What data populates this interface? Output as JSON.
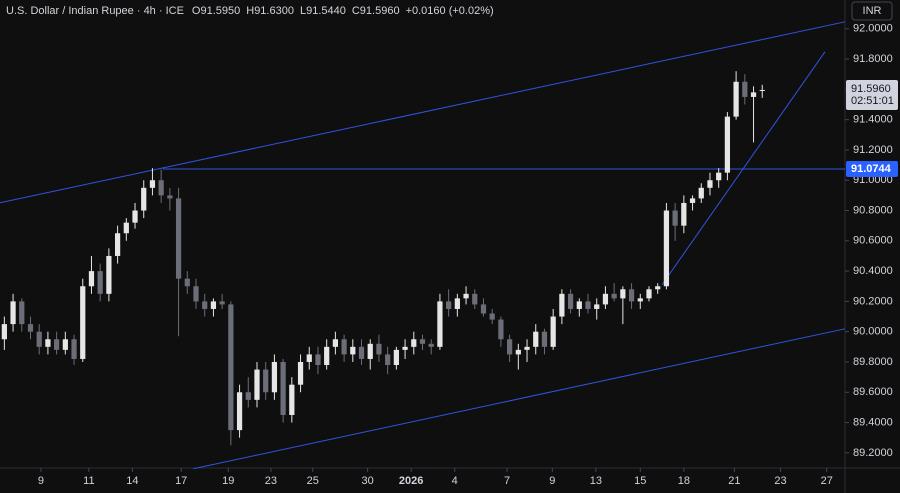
{
  "chart_data": {
    "type": "candlestick",
    "header": {
      "symbol": "U.S. Dollar / Indian Rupee · 4h · ICE",
      "ohlc": [
        "O91.5950",
        "H91.6300",
        "L91.5440",
        "C91.5960"
      ],
      "change": "+0.0160 (+0.02%)"
    },
    "currency": "INR",
    "up_color": "#e6e6e6",
    "down_color": "#6b6e78",
    "line_color": "#2f55e0",
    "x": [
      0,
      1,
      2,
      3,
      4,
      5,
      6,
      7,
      8,
      9,
      10,
      11,
      12,
      13,
      14,
      15,
      16,
      17,
      18,
      19,
      20,
      21,
      22,
      23,
      24,
      25,
      26,
      27,
      28,
      29,
      30,
      31,
      32,
      33,
      34,
      35,
      36,
      37,
      38,
      39,
      40,
      41,
      42,
      43,
      44,
      45,
      46,
      47,
      48,
      49,
      50,
      51,
      52,
      53,
      54,
      55,
      56,
      57,
      58,
      59,
      60,
      61,
      62,
      63,
      64,
      65,
      66,
      67,
      68,
      69,
      70,
      71,
      72,
      73,
      74,
      75,
      76,
      77,
      78,
      79,
      80,
      81,
      82,
      83,
      84,
      85,
      86,
      87
    ],
    "open": [
      89.95,
      90.05,
      90.2,
      90.05,
      90.0,
      89.9,
      89.95,
      89.88,
      89.95,
      89.82,
      90.3,
      90.4,
      90.25,
      90.5,
      90.65,
      90.72,
      90.8,
      90.95,
      91.0,
      90.9,
      90.88,
      90.35,
      90.3,
      90.2,
      90.15,
      90.2,
      90.18,
      89.35,
      89.6,
      89.55,
      89.75,
      89.6,
      89.8,
      89.45,
      89.65,
      89.8,
      89.85,
      89.78,
      89.9,
      89.95,
      89.85,
      89.9,
      89.82,
      89.92,
      89.85,
      89.78,
      89.88,
      89.9,
      89.95,
      89.92,
      89.9,
      90.2,
      90.15,
      90.22,
      90.25,
      90.18,
      90.12,
      90.08,
      89.95,
      89.85,
      89.88,
      89.9,
      90.0,
      89.9,
      90.1,
      90.25,
      90.15,
      90.2,
      90.15,
      90.18,
      90.25,
      90.22,
      90.28,
      90.2,
      90.22,
      90.28,
      90.3,
      90.8,
      90.7,
      90.85,
      90.88,
      90.95,
      91.0,
      91.05,
      91.42,
      91.65,
      91.55,
      91.595
    ],
    "high": [
      90.1,
      90.25,
      90.22,
      90.1,
      90.05,
      90.0,
      90.0,
      90.0,
      89.98,
      90.35,
      90.5,
      90.45,
      90.55,
      90.7,
      90.75,
      90.85,
      91.0,
      91.08,
      91.07,
      90.95,
      90.95,
      90.4,
      90.35,
      90.25,
      90.22,
      90.25,
      90.2,
      89.65,
      89.7,
      89.8,
      89.8,
      89.85,
      89.82,
      89.7,
      89.85,
      89.9,
      89.9,
      89.95,
      90.0,
      89.98,
      89.95,
      89.95,
      89.95,
      89.98,
      89.9,
      89.9,
      89.95,
      90.0,
      89.98,
      89.95,
      90.25,
      90.28,
      90.25,
      90.3,
      90.28,
      90.22,
      90.15,
      90.1,
      89.98,
      89.92,
      89.95,
      90.05,
      90.02,
      90.15,
      90.28,
      90.28,
      90.22,
      90.25,
      90.22,
      90.3,
      90.32,
      90.3,
      90.32,
      90.25,
      90.3,
      90.32,
      90.85,
      90.85,
      90.9,
      90.9,
      90.98,
      91.05,
      91.08,
      91.45,
      91.72,
      91.7,
      91.62,
      91.63
    ],
    "low": [
      89.88,
      90.0,
      90.0,
      89.95,
      89.85,
      89.85,
      89.85,
      89.85,
      89.78,
      89.8,
      90.25,
      90.2,
      90.2,
      90.45,
      90.6,
      90.68,
      90.75,
      90.9,
      90.85,
      90.8,
      89.97,
      90.25,
      90.15,
      90.1,
      90.1,
      90.15,
      89.25,
      89.3,
      89.5,
      89.5,
      89.55,
      89.55,
      89.4,
      89.4,
      89.6,
      89.75,
      89.72,
      89.75,
      89.85,
      89.8,
      89.8,
      89.78,
      89.75,
      89.8,
      89.72,
      89.75,
      89.82,
      89.85,
      89.88,
      89.85,
      89.88,
      90.1,
      90.1,
      90.18,
      90.15,
      90.1,
      90.05,
      89.9,
      89.8,
      89.75,
      89.8,
      89.85,
      89.85,
      89.88,
      90.05,
      90.12,
      90.1,
      90.12,
      90.08,
      90.15,
      90.2,
      90.05,
      90.15,
      90.15,
      90.2,
      90.25,
      90.28,
      90.6,
      90.65,
      90.8,
      90.85,
      90.9,
      90.95,
      91.0,
      91.4,
      91.5,
      91.25,
      91.544
    ],
    "close": [
      90.05,
      90.2,
      90.05,
      90.0,
      89.9,
      89.95,
      89.88,
      89.95,
      89.82,
      90.3,
      90.4,
      90.25,
      90.5,
      90.65,
      90.72,
      90.8,
      90.95,
      91.0,
      90.9,
      90.88,
      90.35,
      90.3,
      90.2,
      90.15,
      90.2,
      90.18,
      89.35,
      89.6,
      89.55,
      89.75,
      89.6,
      89.8,
      89.45,
      89.65,
      89.8,
      89.85,
      89.78,
      89.9,
      89.95,
      89.85,
      89.9,
      89.82,
      89.92,
      89.85,
      89.78,
      89.88,
      89.9,
      89.95,
      89.92,
      89.9,
      90.2,
      90.15,
      90.22,
      90.25,
      90.18,
      90.12,
      90.08,
      89.95,
      89.85,
      89.88,
      89.9,
      90.0,
      89.9,
      90.1,
      90.25,
      90.15,
      90.2,
      90.15,
      90.18,
      90.25,
      90.22,
      90.28,
      90.2,
      90.22,
      90.28,
      90.3,
      90.8,
      90.7,
      90.85,
      90.88,
      90.95,
      91.0,
      91.05,
      91.42,
      91.65,
      91.55,
      91.58,
      91.596
    ],
    "xlim": [
      -0.5,
      96.5
    ],
    "ylim": [
      89.1,
      92.19
    ],
    "xticks": [
      {
        "value": 4.2,
        "label": "9"
      },
      {
        "value": 9.7,
        "label": "11"
      },
      {
        "value": 14.7,
        "label": "14"
      },
      {
        "value": 20.3,
        "label": "17"
      },
      {
        "value": 25.7,
        "label": "19"
      },
      {
        "value": 30.6,
        "label": "23"
      },
      {
        "value": 35.4,
        "label": "25"
      },
      {
        "value": 41.7,
        "label": "30"
      },
      {
        "value": 46.7,
        "label": "2026"
      },
      {
        "value": 51.7,
        "label": "4"
      },
      {
        "value": 57.7,
        "label": "7"
      },
      {
        "value": 62.9,
        "label": "9"
      },
      {
        "value": 67.9,
        "label": "13"
      },
      {
        "value": 73,
        "label": "15"
      },
      {
        "value": 78,
        "label": "18"
      },
      {
        "value": 83.8,
        "label": "21"
      },
      {
        "value": 89.1,
        "label": "23"
      },
      {
        "value": 94.4,
        "label": "27"
      }
    ],
    "yticks": [
      {
        "value": 89.2,
        "label": "89.2000"
      },
      {
        "value": 89.4,
        "label": "89.4000"
      },
      {
        "value": 89.6,
        "label": "89.6000"
      },
      {
        "value": 89.8,
        "label": "89.8000"
      },
      {
        "value": 90.0,
        "label": "90.0000"
      },
      {
        "value": 90.2,
        "label": "90.2000"
      },
      {
        "value": 90.4,
        "label": "90.4000"
      },
      {
        "value": 90.6,
        "label": "90.6000"
      },
      {
        "value": 90.8,
        "label": "90.8000"
      },
      {
        "value": 91.0,
        "label": "91.0000"
      },
      {
        "value": 91.2,
        "label": "91.2000"
      },
      {
        "value": 91.4,
        "label": "91.4000"
      },
      {
        "value": 91.6,
        "label": "91.6000"
      },
      {
        "value": 91.8,
        "label": "91.8000"
      },
      {
        "value": 92.0,
        "label": "92.0000"
      }
    ],
    "price_label": {
      "value": 91.596,
      "label": "91.5960",
      "countdown": "02:51:01"
    },
    "level_label": {
      "value": 91.0744,
      "label": "91.0744"
    },
    "drawings": [
      {
        "x": [
          -0.5,
          96.5
        ],
        "y": [
          90.851,
          92.046
        ]
      },
      {
        "x": [
          21.7,
          96.5
        ],
        "y": [
          89.095,
          90.019
        ]
      },
      {
        "x": [
          18.2,
          96.5
        ],
        "y": [
          91.0744,
          91.0744
        ]
      },
      {
        "x": [
          75.5,
          94.2
        ],
        "y": [
          90.31,
          91.848
        ]
      }
    ]
  }
}
